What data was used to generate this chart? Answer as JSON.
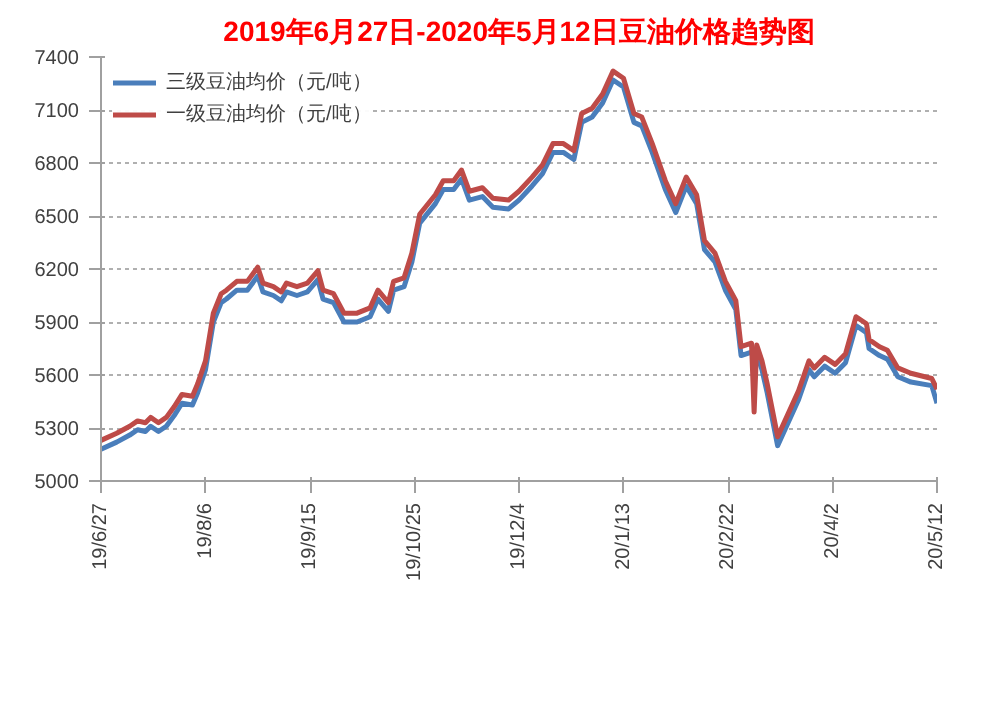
{
  "chart_data": {
    "type": "line",
    "title": "2019年6月27日-2020年5月12日豆油价格趋势图",
    "x": [
      "2019-06-27",
      "2019-07-03",
      "2019-07-08",
      "2019-07-11",
      "2019-07-14",
      "2019-07-16",
      "2019-07-19",
      "2019-07-22",
      "2019-07-25",
      "2019-07-28",
      "2019-08-01",
      "2019-08-03",
      "2019-08-06",
      "2019-08-09",
      "2019-08-12",
      "2019-08-14",
      "2019-08-18",
      "2019-08-22",
      "2019-08-26",
      "2019-08-28",
      "2019-09-01",
      "2019-09-04",
      "2019-09-06",
      "2019-09-10",
      "2019-09-14",
      "2019-09-18",
      "2019-09-20",
      "2019-09-24",
      "2019-09-28",
      "2019-10-03",
      "2019-10-08",
      "2019-10-11",
      "2019-10-15",
      "2019-10-17",
      "2019-10-21",
      "2019-10-24",
      "2019-10-27",
      "2019-11-02",
      "2019-11-05",
      "2019-11-09",
      "2019-11-12",
      "2019-11-15",
      "2019-11-20",
      "2019-11-24",
      "2019-11-30",
      "2019-12-04",
      "2019-12-09",
      "2019-12-13",
      "2019-12-17",
      "2019-12-21",
      "2019-12-25",
      "2019-12-28",
      "2020-01-01",
      "2020-01-05",
      "2020-01-09",
      "2020-01-13",
      "2020-01-17",
      "2020-01-20",
      "2020-01-24",
      "2020-01-29",
      "2020-02-02",
      "2020-02-06",
      "2020-02-10",
      "2020-02-13",
      "2020-02-17",
      "2020-02-21",
      "2020-02-25",
      "2020-02-27",
      "2020-03-02",
      "2020-03-03",
      "2020-03-04",
      "2020-03-06",
      "2020-03-08",
      "2020-03-12",
      "2020-03-16",
      "2020-03-20",
      "2020-03-24",
      "2020-03-26",
      "2020-03-30",
      "2020-04-03",
      "2020-04-07",
      "2020-04-11",
      "2020-04-15",
      "2020-04-16",
      "2020-04-20",
      "2020-04-23",
      "2020-04-27",
      "2020-05-02",
      "2020-05-10",
      "2020-05-12"
    ],
    "series": [
      {
        "name": "三级豆油均价（元/吨）",
        "color": "#4a7ebb",
        "values": [
          5180,
          5220,
          5260,
          5290,
          5280,
          5310,
          5280,
          5310,
          5370,
          5440,
          5430,
          5500,
          5630,
          5900,
          6010,
          6030,
          6080,
          6080,
          6160,
          6070,
          6050,
          6020,
          6070,
          6050,
          6070,
          6140,
          6030,
          6010,
          5900,
          5900,
          5930,
          6030,
          5960,
          6080,
          6100,
          6240,
          6460,
          6570,
          6650,
          6650,
          6710,
          6590,
          6610,
          6550,
          6540,
          6590,
          6670,
          6740,
          6860,
          6860,
          6820,
          7030,
          7060,
          7140,
          7270,
          7230,
          7030,
          7010,
          6860,
          6650,
          6520,
          6670,
          6570,
          6310,
          6240,
          6080,
          5970,
          5710,
          5730,
          5720,
          5720,
          5630,
          5500,
          5200,
          5330,
          5460,
          5630,
          5590,
          5650,
          5610,
          5670,
          5880,
          5840,
          5750,
          5710,
          5690,
          5590,
          5560,
          5540,
          5440
        ]
      },
      {
        "name": "一级豆油均价（元/吨）",
        "color": "#be4b48",
        "values": [
          5230,
          5270,
          5310,
          5340,
          5330,
          5360,
          5330,
          5360,
          5420,
          5490,
          5480,
          5550,
          5680,
          5950,
          6060,
          6080,
          6130,
          6130,
          6210,
          6120,
          6100,
          6070,
          6120,
          6100,
          6120,
          6190,
          6080,
          6060,
          5950,
          5950,
          5980,
          6080,
          6010,
          6130,
          6150,
          6290,
          6510,
          6620,
          6700,
          6700,
          6760,
          6640,
          6660,
          6600,
          6590,
          6640,
          6720,
          6790,
          6910,
          6910,
          6870,
          7080,
          7110,
          7190,
          7320,
          7280,
          7080,
          7060,
          6910,
          6700,
          6570,
          6720,
          6620,
          6360,
          6290,
          6130,
          6020,
          5760,
          5780,
          5390,
          5770,
          5680,
          5550,
          5250,
          5380,
          5510,
          5680,
          5640,
          5700,
          5660,
          5720,
          5930,
          5890,
          5800,
          5760,
          5740,
          5640,
          5610,
          5580,
          5520
        ]
      }
    ],
    "xlim": [
      "2019-06-27",
      "2020-05-12"
    ],
    "xticks": [
      {
        "value": "2019-06-27",
        "label": "19/6/27"
      },
      {
        "value": "2019-08-06",
        "label": "19/8/6"
      },
      {
        "value": "2019-09-15",
        "label": "19/9/15"
      },
      {
        "value": "2019-10-25",
        "label": "19/10/25"
      },
      {
        "value": "2019-12-04",
        "label": "19/12/4"
      },
      {
        "value": "2020-01-13",
        "label": "20/1/13"
      },
      {
        "value": "2020-02-22",
        "label": "20/2/22"
      },
      {
        "value": "2020-04-02",
        "label": "20/4/2"
      },
      {
        "value": "2020-05-12",
        "label": "20/5/12"
      }
    ],
    "ylim": [
      5000,
      7400
    ],
    "yticks": [
      5000,
      5300,
      5600,
      5900,
      6200,
      6500,
      6800,
      7100,
      7400
    ],
    "grid": "y",
    "legend": "top",
    "marker": "none",
    "line_style": "solid"
  }
}
